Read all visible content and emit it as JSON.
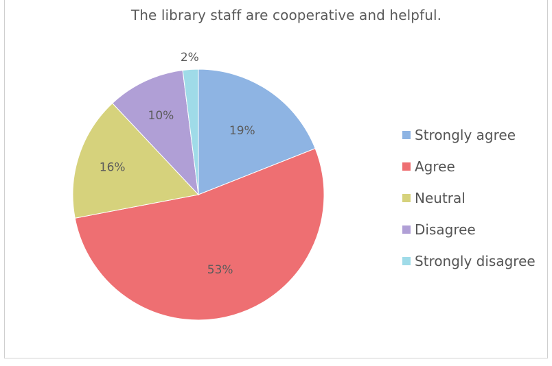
{
  "chart_data": {
    "type": "pie",
    "title": "The library staff are cooperative and helpful.",
    "legend_position": "right",
    "start_angle_deg": 0,
    "direction": "clockwise",
    "slices": [
      {
        "name": "Strongly agree",
        "value": 19,
        "label": "19%",
        "color": "#8eb4e3"
      },
      {
        "name": "Agree",
        "value": 53,
        "label": "53%",
        "color": "#ee6f72"
      },
      {
        "name": "Neutral",
        "value": 16,
        "label": "16%",
        "color": "#d6d27c"
      },
      {
        "name": "Disagree",
        "value": 10,
        "label": "10%",
        "color": "#b09fd6"
      },
      {
        "name": "Strongly disagree",
        "value": 2,
        "label": "2%",
        "color": "#9fdbe8"
      }
    ]
  }
}
